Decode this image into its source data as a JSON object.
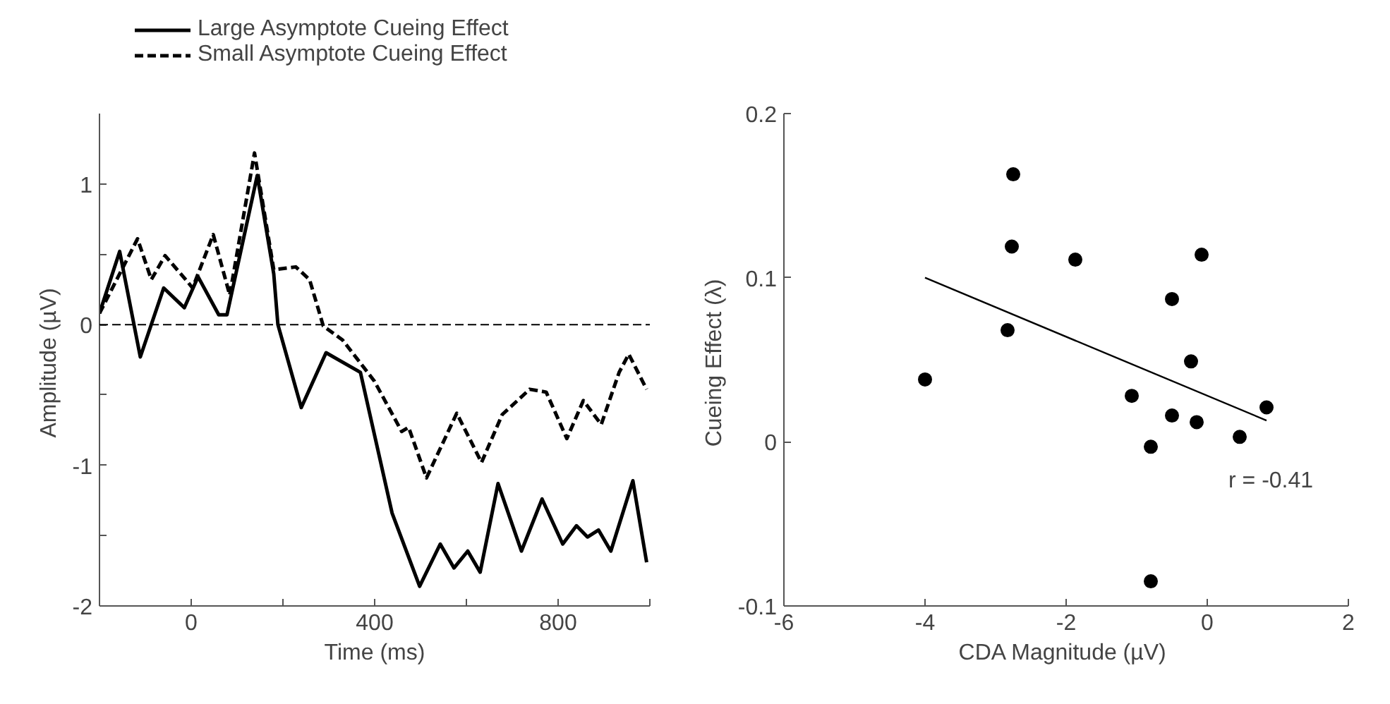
{
  "chart_data": [
    {
      "type": "line",
      "xlabel": "Time (ms)",
      "ylabel": "Amplitude  (µV)",
      "xlim": [
        -200,
        1000
      ],
      "ylim": [
        -2,
        1.5
      ],
      "xticks": [
        0,
        {
          "value": 200,
          "label": null
        },
        400,
        {
          "value": 600,
          "label": null
        },
        800,
        {
          "value": 1000,
          "label": null
        }
      ],
      "yticks": [
        -2,
        {
          "value": -1.5,
          "label": null
        },
        -1,
        {
          "value": -0.5,
          "label": null
        },
        0,
        {
          "value": 0.5,
          "label": null
        },
        1
      ],
      "grid": false,
      "legend": "top",
      "marker": "none",
      "ref_lines": [
        {
          "axis": "y",
          "value": 0,
          "line_style": "dashed",
          "color": "#000000"
        }
      ],
      "series": [
        {
          "name": "Large Asymptote Cueing Effect",
          "color": "#000000",
          "line_style": "solid",
          "x": [
            -200,
            -156,
            -111,
            -60,
            -15,
            15,
            60,
            78,
            144,
            180,
            189,
            240,
            294,
            369,
            438,
            498,
            543,
            573,
            603,
            630,
            669,
            720,
            765,
            810,
            840,
            864,
            888,
            915,
            963,
            993
          ],
          "values": [
            0.08,
            0.52,
            -0.23,
            0.26,
            0.12,
            0.34,
            0.07,
            0.07,
            1.06,
            0.36,
            0.0,
            -0.59,
            -0.2,
            -0.34,
            -1.34,
            -1.86,
            -1.56,
            -1.73,
            -1.61,
            -1.76,
            -1.13,
            -1.61,
            -1.24,
            -1.56,
            -1.43,
            -1.51,
            -1.46,
            -1.61,
            -1.11,
            -1.69
          ]
        },
        {
          "name": "Small Asymptote Cueing Effect",
          "color": "#000000",
          "line_style": "dashed",
          "x": [
            -200,
            -117,
            -87,
            -57,
            -12,
            3,
            48,
            84,
            138,
            180,
            228,
            258,
            288,
            330,
            399,
            459,
            474,
            513,
            579,
            633,
            678,
            738,
            774,
            819,
            855,
            894,
            933,
            954,
            993
          ],
          "values": [
            0.08,
            0.61,
            0.32,
            0.49,
            0.32,
            0.26,
            0.64,
            0.21,
            1.22,
            0.39,
            0.41,
            0.32,
            -0.01,
            -0.11,
            -0.4,
            -0.76,
            -0.73,
            -1.09,
            -0.63,
            -0.98,
            -0.64,
            -0.46,
            -0.48,
            -0.81,
            -0.54,
            -0.71,
            -0.34,
            -0.21,
            -0.46
          ]
        }
      ]
    },
    {
      "type": "scatter",
      "xlabel": "CDA Magnitude  (µV)",
      "ylabel": "Cueing  Effect (λ)",
      "xlim": [
        -6,
        2
      ],
      "ylim": [
        -0.1,
        0.2
      ],
      "xticks": [
        -6,
        -4,
        -2,
        0,
        2
      ],
      "yticks": [
        -0.1,
        0,
        0.1,
        0.2
      ],
      "grid": false,
      "marker": "circle",
      "annotations": [
        "r = -0.41"
      ],
      "series": [
        {
          "color": "#000000",
          "x": [
            -4.0,
            -2.83,
            -2.77,
            -2.75,
            -1.87,
            -1.07,
            -0.8,
            -0.8,
            -0.5,
            -0.5,
            -0.23,
            -0.15,
            -0.08,
            0.46,
            0.84
          ],
          "values": [
            0.038,
            0.068,
            0.119,
            0.163,
            0.111,
            0.028,
            -0.003,
            -0.085,
            0.087,
            0.016,
            0.049,
            0.012,
            0.114,
            0.003,
            0.021
          ]
        },
        {
          "type": "line",
          "marker": "none",
          "color": "#000000",
          "x": [
            -4.0,
            0.84
          ],
          "values": [
            0.1,
            0.013
          ]
        }
      ]
    }
  ]
}
